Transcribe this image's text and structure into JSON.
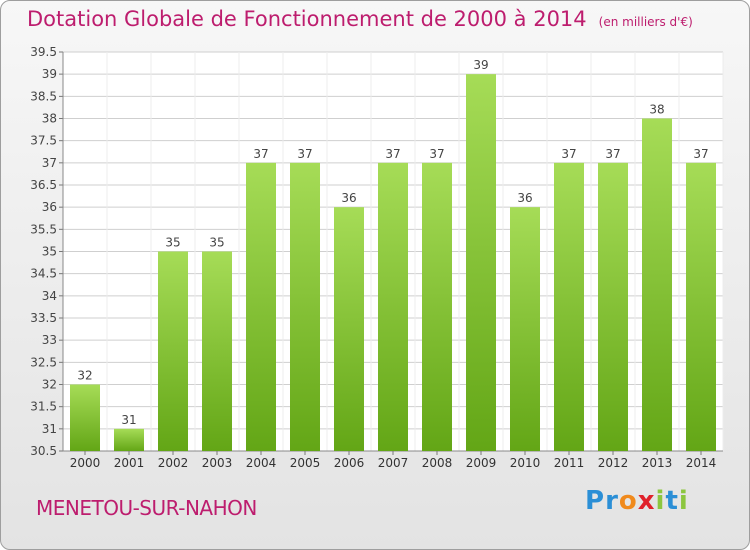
{
  "title": "Dotation Globale de Fonctionnement de 2000 à 2014",
  "subtitle": "(en milliers d'€)",
  "commune": "MENETOU-SUR-NAHON",
  "logo": {
    "letters": [
      "P",
      "r",
      "o",
      "x",
      "i",
      "t",
      "i"
    ],
    "colors": [
      "#2b8fd6",
      "#2b8fd6",
      "#f08a1c",
      "#e0212b",
      "#8cc63f",
      "#2b8fd6",
      "#8cc63f"
    ]
  },
  "colors": {
    "bar_light": "#a6dc57",
    "bar_dark": "#63a616",
    "grid": "#cfcfcf",
    "title": "#bd1d6e"
  },
  "chart_data": {
    "type": "bar",
    "title": "Dotation Globale de Fonctionnement de 2000 à 2014",
    "subtitle": "(en milliers d'€)",
    "xlabel": "",
    "ylabel": "",
    "categories": [
      "2000",
      "2001",
      "2002",
      "2003",
      "2004",
      "2005",
      "2006",
      "2007",
      "2008",
      "2009",
      "2010",
      "2011",
      "2012",
      "2013",
      "2014"
    ],
    "values": [
      32,
      31,
      35,
      35,
      37,
      37,
      36,
      37,
      37,
      39,
      36,
      37,
      37,
      38,
      37
    ],
    "data_labels": [
      "32",
      "31",
      "35",
      "35",
      "37",
      "37",
      "36",
      "37",
      "37",
      "39",
      "36",
      "37",
      "37",
      "38",
      "37"
    ],
    "ylim": [
      30.5,
      39.5
    ],
    "yticks": [
      30.5,
      31,
      31.5,
      32,
      32.5,
      33,
      33.5,
      34,
      34.5,
      35,
      35.5,
      36,
      36.5,
      37,
      37.5,
      38,
      38.5,
      39,
      39.5
    ],
    "ytick_labels": [
      "30.5",
      "31",
      "31.5",
      "32",
      "32.5",
      "33",
      "33.5",
      "34",
      "34.5",
      "35",
      "35.5",
      "36",
      "36.5",
      "37",
      "37.5",
      "38",
      "38.5",
      "39",
      "39.5"
    ],
    "grid": true,
    "legend": "none"
  }
}
